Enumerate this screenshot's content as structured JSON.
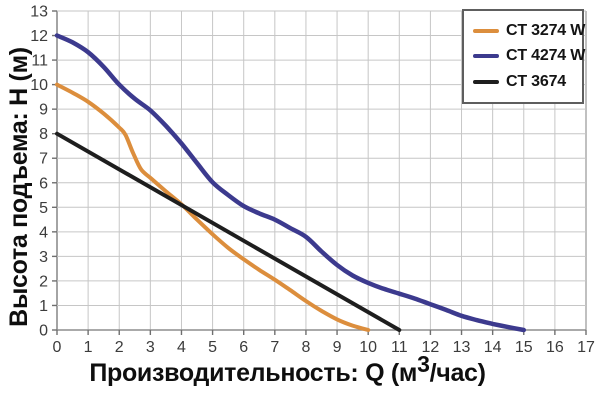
{
  "chart_data": {
    "type": "line",
    "title": "",
    "xlabel": {
      "prefix": "Производительность: Q (м",
      "sup": "3",
      "suffix": "/час)"
    },
    "ylabel": "Высота подъема: Н (м)",
    "xlim": [
      0,
      17
    ],
    "ylim": [
      0,
      13
    ],
    "x_ticks": [
      0,
      1,
      2,
      3,
      4,
      5,
      6,
      7,
      8,
      9,
      10,
      11,
      12,
      13,
      14,
      15,
      16,
      17
    ],
    "y_ticks": [
      0,
      1,
      2,
      3,
      4,
      5,
      6,
      7,
      8,
      9,
      10,
      11,
      12,
      13
    ],
    "grid": true,
    "legend_position": "top-right",
    "series": [
      {
        "name": "CT 3274 W",
        "color": "#DC8E3D",
        "stroke_width": 4,
        "points": [
          [
            0,
            10
          ],
          [
            0.5,
            9.67
          ],
          [
            1,
            9.3
          ],
          [
            1.5,
            8.82
          ],
          [
            2,
            8.25
          ],
          [
            2.2,
            7.95
          ],
          [
            2.45,
            7.2
          ],
          [
            2.7,
            6.55
          ],
          [
            3,
            6.2
          ],
          [
            3.5,
            5.65
          ],
          [
            4,
            5.12
          ],
          [
            4.5,
            4.5
          ],
          [
            5,
            3.9
          ],
          [
            5.5,
            3.35
          ],
          [
            6,
            2.88
          ],
          [
            6.5,
            2.45
          ],
          [
            7,
            2.05
          ],
          [
            7.5,
            1.62
          ],
          [
            8,
            1.18
          ],
          [
            8.5,
            0.78
          ],
          [
            9,
            0.43
          ],
          [
            9.5,
            0.18
          ],
          [
            10,
            0
          ]
        ]
      },
      {
        "name": "CT 4274 W",
        "color": "#3C3A8E",
        "stroke_width": 4.5,
        "points": [
          [
            0,
            12
          ],
          [
            0.5,
            11.72
          ],
          [
            1,
            11.32
          ],
          [
            1.5,
            10.72
          ],
          [
            2,
            10.0
          ],
          [
            2.5,
            9.42
          ],
          [
            3,
            8.95
          ],
          [
            3.5,
            8.32
          ],
          [
            4,
            7.6
          ],
          [
            4.5,
            6.8
          ],
          [
            5,
            6.02
          ],
          [
            5.5,
            5.5
          ],
          [
            6,
            5.05
          ],
          [
            6.5,
            4.75
          ],
          [
            7,
            4.5
          ],
          [
            7.5,
            4.15
          ],
          [
            8,
            3.8
          ],
          [
            8.5,
            3.2
          ],
          [
            9,
            2.65
          ],
          [
            9.5,
            2.22
          ],
          [
            10,
            1.92
          ],
          [
            10.5,
            1.68
          ],
          [
            11,
            1.48
          ],
          [
            11.5,
            1.28
          ],
          [
            12,
            1.05
          ],
          [
            12.5,
            0.82
          ],
          [
            13,
            0.58
          ],
          [
            13.5,
            0.4
          ],
          [
            14,
            0.25
          ],
          [
            14.5,
            0.12
          ],
          [
            15,
            0
          ]
        ]
      },
      {
        "name": "CT 3674",
        "color": "#1E1E1E",
        "stroke_width": 4,
        "points": [
          [
            0,
            8
          ],
          [
            11,
            0
          ]
        ]
      }
    ]
  },
  "colors": {
    "background": "#ffffff",
    "grid": "#c6c6c6",
    "axis": "#8d8d8d",
    "tick_text": "#3c3c3c",
    "label_text": "#0e0e0e",
    "legend_border": "#5e5e5e"
  }
}
